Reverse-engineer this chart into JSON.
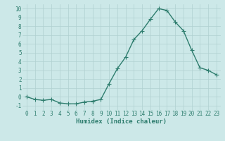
{
  "x": [
    0,
    1,
    2,
    3,
    4,
    5,
    6,
    7,
    8,
    9,
    10,
    11,
    12,
    13,
    14,
    15,
    16,
    17,
    18,
    19,
    20,
    21,
    22,
    23
  ],
  "y": [
    0.0,
    -0.3,
    -0.4,
    -0.3,
    -0.7,
    -0.8,
    -0.8,
    -0.6,
    -0.5,
    -0.3,
    1.5,
    3.2,
    4.5,
    6.5,
    7.5,
    8.8,
    10.0,
    9.8,
    8.5,
    7.5,
    5.3,
    3.3,
    3.0,
    2.5
  ],
  "line_color": "#2e7d6e",
  "marker": "+",
  "marker_size": 4,
  "bg_color": "#cce8e8",
  "grid_color": "#b0d0d0",
  "xlabel": "Humidex (Indice chaleur)",
  "xlim": [
    -0.5,
    23.5
  ],
  "ylim": [
    -1.5,
    10.5
  ],
  "yticks": [
    -1,
    0,
    1,
    2,
    3,
    4,
    5,
    6,
    7,
    8,
    9,
    10
  ],
  "xticks": [
    0,
    1,
    2,
    3,
    4,
    5,
    6,
    7,
    8,
    9,
    10,
    11,
    12,
    13,
    14,
    15,
    16,
    17,
    18,
    19,
    20,
    21,
    22,
    23
  ],
  "tick_fontsize": 5.5,
  "xlabel_fontsize": 6.5,
  "linewidth": 1.0,
  "markeredgewidth": 0.8
}
